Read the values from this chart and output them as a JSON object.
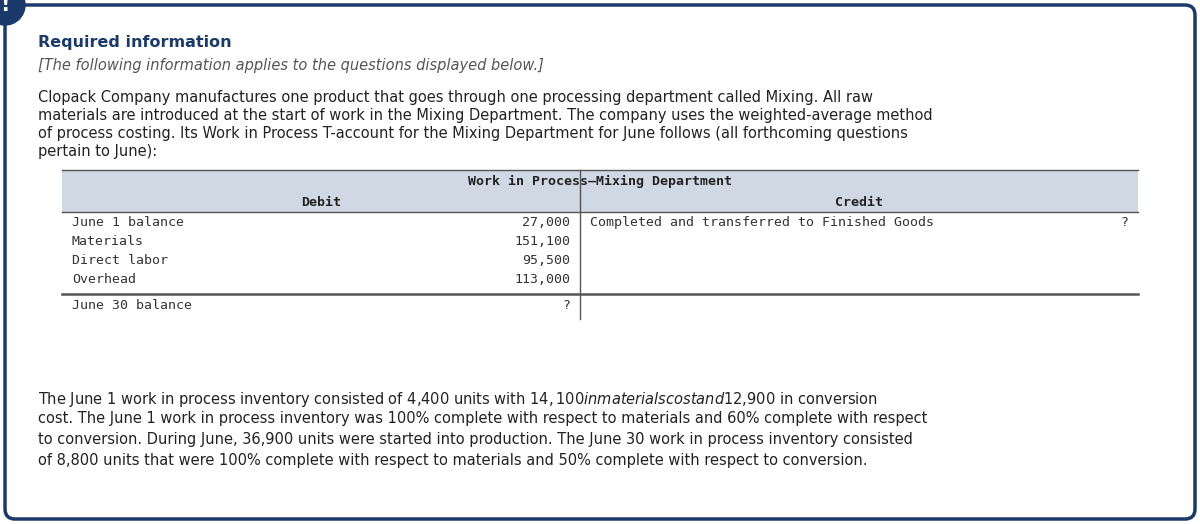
{
  "border_color": "#1B3A6B",
  "background_color": "#FFFFFF",
  "icon_color": "#1B3A6B",
  "icon_text_color": "#FFFFFF",
  "required_info_text": "Required information",
  "required_info_color": "#1B3A6B",
  "italic_line": "[The following information applies to the questions displayed below.]",
  "italic_color": "#555555",
  "body_text_line1": "Clopack Company manufactures one product that goes through one processing department called Mixing. All raw",
  "body_text_line2": "materials are introduced at the start of work in the Mixing Department. The company uses the weighted-average method",
  "body_text_line3": "of process costing. Its Work in Process T-account for the Mixing Department for June follows (all forthcoming questions",
  "body_text_line4": "pertain to June):",
  "body_color": "#222222",
  "table_header": "Work in Process–Mixing Department",
  "table_header_color": "#222222",
  "table_bg_color": "#D0D8E4",
  "col_debit_label": "Debit",
  "col_credit_label": "Credit",
  "debit_rows": [
    [
      "June 1 balance",
      "27,000"
    ],
    [
      "Materials",
      "151,100"
    ],
    [
      "Direct labor",
      "95,500"
    ],
    [
      "Overhead",
      "113,000"
    ]
  ],
  "credit_row_label": "Completed and transferred to Finished Goods",
  "credit_row_amount": "?",
  "debit_balance_label": "June 30 balance",
  "debit_balance_amount": "?",
  "table_mono_color": "#333333",
  "divider_color": "#555555",
  "bottom_line1": "The June 1 work in process inventory consisted of 4,400 units with $14,100 in materials cost and $12,900 in conversion",
  "bottom_line2": "cost. The June 1 work in process inventory was 100% complete with respect to materials and 60% complete with respect",
  "bottom_line3": "to conversion. During June, 36,900 units were started into production. The June 30 work in process inventory consisted",
  "bottom_line4": "of 8,800 units that were 100% complete with respect to materials and 50% complete with respect to conversion.",
  "bottom_text_color": "#222222"
}
